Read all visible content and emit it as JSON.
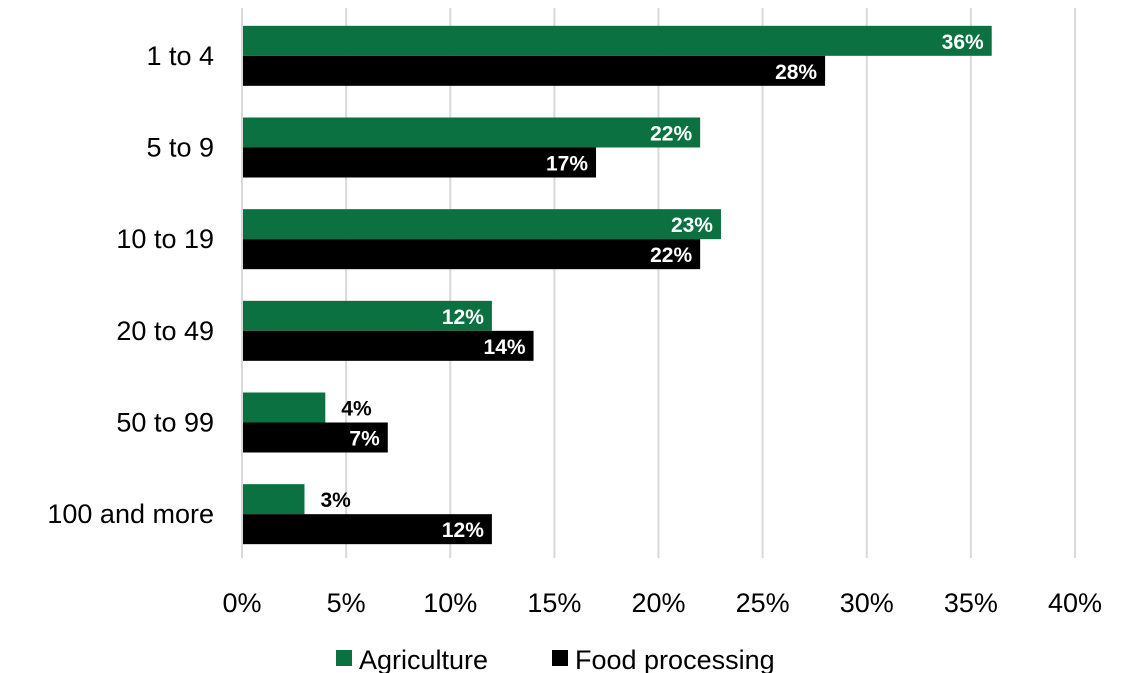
{
  "chart_data": {
    "type": "bar",
    "orientation": "horizontal",
    "categories": [
      "1 to 4",
      "5 to 9",
      "10 to 19",
      "20 to 49",
      "50 to 99",
      "100 and more"
    ],
    "series": [
      {
        "name": "Agriculture",
        "color": "#0b7140",
        "values": [
          36,
          22,
          23,
          12,
          4,
          3
        ],
        "labels": [
          "36%",
          "22%",
          "23%",
          "12%",
          "4%",
          "3%"
        ]
      },
      {
        "name": "Food processing",
        "color": "#000000",
        "values": [
          28,
          17,
          22,
          14,
          7,
          12
        ],
        "labels": [
          "28%",
          "17%",
          "22%",
          "14%",
          "7%",
          "12%"
        ]
      }
    ],
    "x_ticks": [
      "0%",
      "5%",
      "10%",
      "15%",
      "20%",
      "25%",
      "30%",
      "35%",
      "40%"
    ],
    "xlim": [
      0,
      40
    ],
    "grid": "vertical",
    "legend_position": "bottom",
    "title": "",
    "xlabel": "",
    "ylabel": ""
  }
}
